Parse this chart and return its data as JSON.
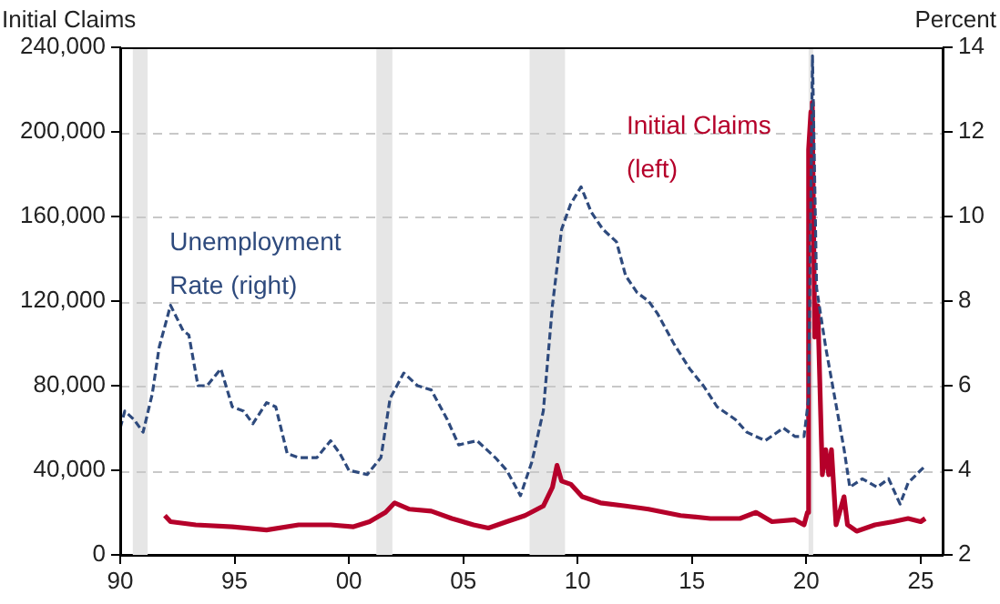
{
  "chart_data": {
    "type": "line",
    "ylabel": "Initial Claims",
    "y2label": "Percent",
    "xlim": [
      1990,
      2026
    ],
    "xticks": [
      {
        "value": 1990,
        "label": "90"
      },
      {
        "value": 1995,
        "label": "95"
      },
      {
        "value": 2000,
        "label": "00"
      },
      {
        "value": 2005,
        "label": "05"
      },
      {
        "value": 2010,
        "label": "10"
      },
      {
        "value": 2015,
        "label": "15"
      },
      {
        "value": 2020,
        "label": "20"
      },
      {
        "value": 2025,
        "label": "25"
      }
    ],
    "ylim": [
      0,
      240000
    ],
    "yticks": [
      {
        "value": 0,
        "label": "0"
      },
      {
        "value": 40000,
        "label": "40,000"
      },
      {
        "value": 80000,
        "label": "80,000"
      },
      {
        "value": 120000,
        "label": "120,000"
      },
      {
        "value": 160000,
        "label": "160,000"
      },
      {
        "value": 200000,
        "label": "200,000"
      },
      {
        "value": 240000,
        "label": "240,000"
      }
    ],
    "y2lim": [
      2,
      14
    ],
    "y2ticks": [
      2,
      4,
      6,
      8,
      10,
      12,
      14
    ],
    "grid": "y",
    "legend": false,
    "bands": [
      {
        "axis": "x",
        "from": 1990.55,
        "to": 1991.2,
        "color": "#e6e6e6"
      },
      {
        "axis": "x",
        "from": 2001.2,
        "to": 2001.9,
        "color": "#e6e6e6"
      },
      {
        "axis": "x",
        "from": 2007.9,
        "to": 2009.45,
        "color": "#e6e6e6"
      },
      {
        "axis": "x",
        "from": 2020.1,
        "to": 2020.3,
        "color": "#e6e6e6"
      }
    ],
    "series": [
      {
        "name": "Unemployment Rate (right)",
        "color": "#2e4a7d",
        "axis": "y2",
        "line_style": "dashed",
        "x": [
          1990.0,
          1990.2,
          1990.6,
          1991.0,
          1991.4,
          1991.7,
          1992.2,
          1992.75,
          1993.0,
          1993.4,
          1993.8,
          1994.4,
          1994.9,
          1995.4,
          1995.8,
          1996.4,
          1996.8,
          1997.3,
          1997.8,
          1998.6,
          1999.2,
          1999.6,
          2000.0,
          2000.8,
          2001.4,
          2001.8,
          2002.4,
          2003.0,
          2003.6,
          2004.3,
          2004.8,
          2005.6,
          2006.4,
          2006.9,
          2007.5,
          2008.0,
          2008.5,
          2008.9,
          2009.3,
          2009.7,
          2010.15,
          2010.6,
          2011.1,
          2011.7,
          2012.1,
          2012.6,
          2013.1,
          2013.5,
          2014.2,
          2014.9,
          2015.5,
          2016.1,
          2016.9,
          2017.4,
          2018.2,
          2019.0,
          2019.5,
          2019.9,
          2020.1,
          2020.27,
          2020.45,
          2020.85,
          2021.25,
          2021.65,
          2021.9,
          2022.45,
          2023.1,
          2023.6,
          2024.1,
          2024.45,
          2025.0,
          2025.2
        ],
        "values": [
          5.0,
          5.4,
          5.2,
          4.9,
          5.8,
          6.9,
          7.9,
          7.3,
          7.2,
          6.0,
          6.0,
          6.4,
          5.5,
          5.4,
          5.1,
          5.6,
          5.5,
          4.4,
          4.3,
          4.3,
          4.7,
          4.4,
          4.0,
          3.9,
          4.3,
          5.7,
          6.3,
          6.0,
          5.9,
          5.2,
          4.6,
          4.7,
          4.3,
          4.0,
          3.4,
          4.2,
          5.4,
          7.9,
          9.7,
          10.3,
          10.7,
          10.1,
          9.7,
          9.4,
          8.6,
          8.2,
          8.0,
          7.7,
          7.0,
          6.4,
          6.0,
          5.5,
          5.2,
          4.9,
          4.7,
          5.0,
          4.8,
          4.8,
          5.7,
          13.8,
          8.3,
          6.9,
          5.7,
          4.5,
          3.6,
          3.8,
          3.6,
          3.8,
          3.2,
          3.7,
          4.0,
          4.1
        ]
      },
      {
        "name": "Initial Claims (left)",
        "color": "#b5002a",
        "line_style": "solid",
        "x": [
          1991.95,
          1992.2,
          1993.3,
          1994.9,
          1996.4,
          1997.8,
          1999.2,
          2000.2,
          2000.9,
          2001.6,
          2002.0,
          2002.65,
          2003.6,
          2004.5,
          2005.45,
          2006.1,
          2006.9,
          2007.7,
          2008.5,
          2008.9,
          2009.1,
          2009.3,
          2009.7,
          2010.2,
          2011.0,
          2012.1,
          2013.1,
          2014.5,
          2015.8,
          2017.1,
          2017.8,
          2018.5,
          2019.5,
          2019.9,
          2020.05,
          2020.1,
          2020.2,
          2020.26,
          2020.37,
          2020.5,
          2020.7,
          2020.85,
          2020.98,
          2021.1,
          2021.3,
          2021.65,
          2021.8,
          2022.2,
          2023.0,
          2023.8,
          2024.45,
          2025.0,
          2025.2
        ],
        "values": [
          18600,
          15700,
          14200,
          13300,
          11800,
          14200,
          14200,
          13300,
          15700,
          20100,
          24600,
          21600,
          20700,
          17200,
          14200,
          12700,
          15700,
          18600,
          23100,
          32000,
          42300,
          34900,
          33400,
          27500,
          24600,
          23100,
          21600,
          18600,
          17200,
          17200,
          20100,
          15700,
          16600,
          14200,
          20100,
          191700,
          209500,
          213900,
          103000,
          117800,
          37900,
          49700,
          37900,
          49700,
          14200,
          27500,
          14200,
          11200,
          14200,
          15700,
          17200,
          15700,
          17200
        ]
      }
    ]
  }
}
